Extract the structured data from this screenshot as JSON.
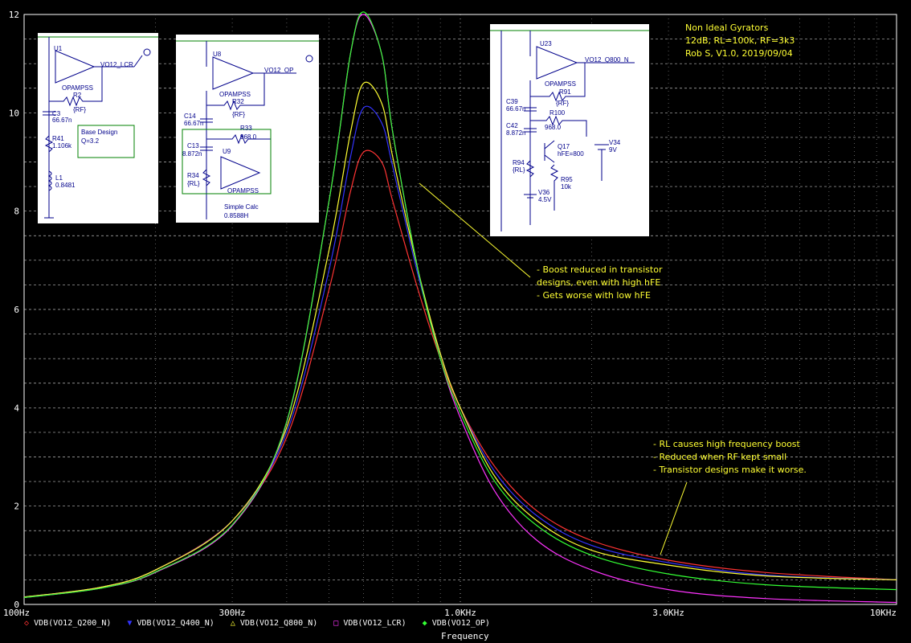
{
  "chart_data": {
    "type": "line",
    "title": "",
    "xlabel": "Frequency",
    "ylabel": "",
    "xscale": "log",
    "xlim": [
      100,
      10000
    ],
    "ylim": [
      0,
      12
    ],
    "grid": true,
    "legend_placement": "bottom",
    "x_ticks": [
      "100Hz",
      "300Hz",
      "1.0KHz",
      "3.0KHz",
      "10KHz"
    ],
    "x_tick_values": [
      100,
      300,
      1000,
      3000,
      10000
    ],
    "y_ticks": [
      "0",
      "2",
      "4",
      "6",
      "8",
      "10",
      "12"
    ],
    "y_tick_values": [
      0,
      2,
      4,
      6,
      8,
      10,
      12
    ],
    "x": [
      100,
      150,
      200,
      300,
      400,
      500,
      560,
      600,
      660,
      700,
      800,
      900,
      1000,
      1200,
      1500,
      2000,
      3000,
      5000,
      10000
    ],
    "series": [
      {
        "name": "VDB(VO12_Q200_N)",
        "color": "#ff3333",
        "marker": "◇",
        "values": [
          0.15,
          0.35,
          0.7,
          1.7,
          3.4,
          6.4,
          8.4,
          9.2,
          9.0,
          8.2,
          6.4,
          5.0,
          4.0,
          2.8,
          1.9,
          1.3,
          0.9,
          0.65,
          0.5
        ]
      },
      {
        "name": "VDB(VO12_Q400_N)",
        "color": "#3333ff",
        "marker": "▼",
        "values": [
          0.15,
          0.35,
          0.7,
          1.7,
          3.5,
          6.8,
          9.1,
          10.1,
          9.8,
          8.9,
          6.7,
          5.1,
          4.0,
          2.7,
          1.8,
          1.2,
          0.85,
          0.6,
          0.5
        ]
      },
      {
        "name": "VDB(VO12_Q800_N)",
        "color": "#ffff33",
        "marker": "△",
        "values": [
          0.15,
          0.35,
          0.7,
          1.7,
          3.6,
          7.2,
          9.6,
          10.6,
          10.2,
          9.1,
          6.8,
          5.1,
          4.0,
          2.6,
          1.7,
          1.1,
          0.8,
          0.58,
          0.5
        ]
      },
      {
        "name": "VDB(VO12_LCR)",
        "color": "#ff33ff",
        "marker": "□",
        "values": [
          0.14,
          0.33,
          0.65,
          1.6,
          3.7,
          8.2,
          11.2,
          12.0,
          11.2,
          9.6,
          6.8,
          5.0,
          3.8,
          2.3,
          1.3,
          0.7,
          0.3,
          0.12,
          0.04
        ]
      },
      {
        "name": "VDB(VO12_OP)",
        "color": "#33ff33",
        "marker": "◆",
        "values": [
          0.14,
          0.33,
          0.66,
          1.62,
          3.72,
          8.2,
          11.2,
          12.05,
          11.2,
          9.6,
          6.8,
          5.0,
          3.9,
          2.5,
          1.6,
          1.0,
          0.62,
          0.4,
          0.3
        ]
      }
    ]
  },
  "annotations": {
    "header": [
      "Non Ideal Gyrators",
      "12dB, RL=100k, RF=3k3",
      "Rob S, V1.0, 2019/09/04"
    ],
    "boost": [
      "- Boost reduced in transistor",
      "designs, even with high hFE",
      "- Gets worse with low hFE"
    ],
    "rl": [
      "- RL causes high frequency boost",
      "- Reduced when RF kept small",
      "- Transistor designs make it worse."
    ]
  },
  "schematic1": {
    "labels": [
      "U1",
      "VO12_LCR",
      "OPAMPSS",
      "R2",
      "{RF}",
      "C3",
      "66.67n",
      "R41",
      "1.106k",
      "L1",
      "0.8481",
      "Base Design",
      "Q=3.2"
    ]
  },
  "schematic2": {
    "labels": [
      "U8",
      "VO12_OP",
      "OPAMPSS",
      "R32",
      "{RF}",
      "C14",
      "66.67n",
      "R33",
      "968.0",
      "C13",
      "8.872n",
      "U9",
      "R34",
      "{RL}",
      "OPAMPSS",
      "Simple Calc",
      "0.8588H"
    ]
  },
  "schematic3": {
    "labels": [
      "U23",
      "VO12_Q800_N",
      "OPAMPSS",
      "R91",
      "{RF}",
      "C39",
      "66.67n",
      "R100",
      "C42",
      "8.872n",
      "968.0",
      "Q17",
      "hFE=800",
      "V34",
      "9V",
      "R94",
      "{RL}",
      "R95",
      "10k",
      "V36",
      "4.5V"
    ]
  }
}
